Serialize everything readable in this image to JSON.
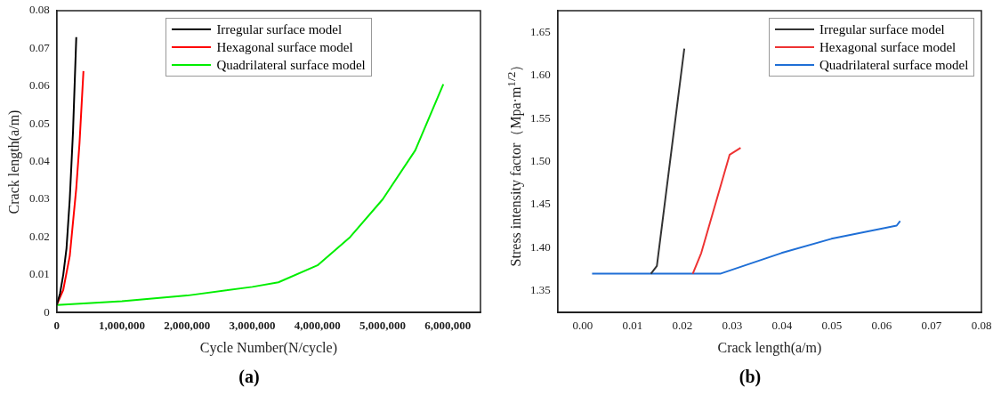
{
  "chart_data": [
    {
      "type": "line",
      "xlabel": "Cycle Number(N/cycle)",
      "ylabel": "Crack length(a/m)",
      "annotations": [
        "(a)"
      ],
      "legend": "top",
      "grid": false,
      "marker": "none",
      "line_style": "solid",
      "xlim": [
        0,
        6500000
      ],
      "xticks": [
        0,
        {
          "value": 1000000,
          "label": "1,000,000"
        },
        {
          "value": 2000000,
          "label": "2,000,000"
        },
        {
          "value": 3000000,
          "label": "3,000,000"
        },
        {
          "value": 4000000,
          "label": "4,000,000"
        },
        {
          "value": 5000000,
          "label": "5,000,000"
        },
        {
          "value": 6000000,
          "label": "6,000,000"
        }
      ],
      "ylim": [
        0,
        0.08
      ],
      "yticks": [
        0,
        0.01,
        0.02,
        0.03,
        0.04,
        0.05,
        0.06,
        0.07,
        0.08
      ],
      "series": [
        {
          "name": "Irregular surface model",
          "color": "#000000",
          "x": [
            0,
            50000,
            100000,
            150000,
            200000,
            250000,
            300000
          ],
          "values": [
            0.002,
            0.005,
            0.01,
            0.017,
            0.03,
            0.048,
            0.073
          ]
        },
        {
          "name": "Hexagonal surface model",
          "color": "#ff0000",
          "x": [
            0,
            100000,
            200000,
            300000,
            350000,
            410000
          ],
          "values": [
            0.002,
            0.006,
            0.015,
            0.033,
            0.045,
            0.064
          ]
        },
        {
          "name": "Quadrilateral surface model",
          "color": "#00ee00",
          "x": [
            0,
            1000000,
            2000000,
            3000000,
            3400000,
            4000000,
            4500000,
            5000000,
            5500000,
            5930000
          ],
          "values": [
            0.002,
            0.003,
            0.0045,
            0.0068,
            0.008,
            0.0125,
            0.02,
            0.03,
            0.043,
            0.0605
          ]
        }
      ]
    },
    {
      "type": "line",
      "xlabel": "Crack length(a/m)",
      "ylabel": "Stress intensity factor（Mpa·m$^{1/2}$）",
      "annotations": [
        "(b)"
      ],
      "legend": "top right",
      "grid": false,
      "marker": "none",
      "line_style": "solid",
      "xlim": [
        -0.005,
        0.08
      ],
      "xticks": [
        {
          "value": 0,
          "label": "0.00"
        },
        0.01,
        0.02,
        0.03,
        0.04,
        0.05,
        0.06,
        0.07,
        0.08
      ],
      "ylim": [
        1.325,
        1.675
      ],
      "yticks": [
        1.35,
        {
          "value": 1.4,
          "label": "1.40"
        },
        1.45,
        {
          "value": 1.5,
          "label": "1.50"
        },
        1.55,
        {
          "value": 1.6,
          "label": "1.60"
        },
        1.65
      ],
      "series": [
        {
          "name": "Irregular surface model",
          "color": "#333333",
          "x": [
            0.0137,
            0.0149,
            0.0204
          ],
          "values": [
            1.37,
            1.379,
            1.631
          ]
        },
        {
          "name": "Hexagonal surface model",
          "color": "#ee3333",
          "x": [
            0.0221,
            0.0238,
            0.0295,
            0.0317
          ],
          "values": [
            1.37,
            1.394,
            1.508,
            1.516
          ]
        },
        {
          "name": "Quadrilateral surface model",
          "color": "#1f6fd6",
          "x": [
            0.0019,
            0.0276,
            0.0399,
            0.0499,
            0.063,
            0.0637
          ],
          "values": [
            1.37,
            1.37,
            1.394,
            1.4105,
            1.4258,
            1.431
          ]
        }
      ]
    }
  ]
}
